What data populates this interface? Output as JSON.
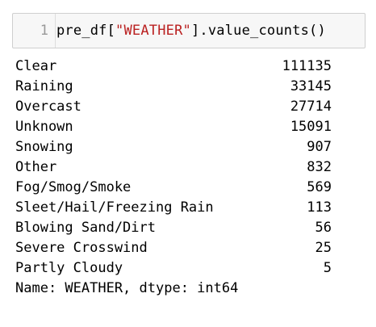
{
  "input_cell": {
    "line_number": "1",
    "code_prefix": "pre_df[",
    "code_string": "\"WEATHER\"",
    "code_suffix": "].value_counts()"
  },
  "output": {
    "rows": [
      {
        "label": "Clear",
        "value": "111135"
      },
      {
        "label": "Raining",
        "value": "33145"
      },
      {
        "label": "Overcast",
        "value": "27714"
      },
      {
        "label": "Unknown",
        "value": "15091"
      },
      {
        "label": "Snowing",
        "value": "907"
      },
      {
        "label": "Other",
        "value": "832"
      },
      {
        "label": "Fog/Smog/Smoke",
        "value": "569"
      },
      {
        "label": "Sleet/Hail/Freezing Rain",
        "value": "113"
      },
      {
        "label": "Blowing Sand/Dirt",
        "value": "56"
      },
      {
        "label": "Severe Crosswind",
        "value": "25"
      },
      {
        "label": "Partly Cloudy",
        "value": "5"
      }
    ],
    "footer": "Name: WEATHER, dtype: int64"
  },
  "colors": {
    "string_token": "#ba2121",
    "cell_background": "#f7f7f7",
    "cell_border": "#cfcfcf",
    "line_number": "#999999"
  }
}
